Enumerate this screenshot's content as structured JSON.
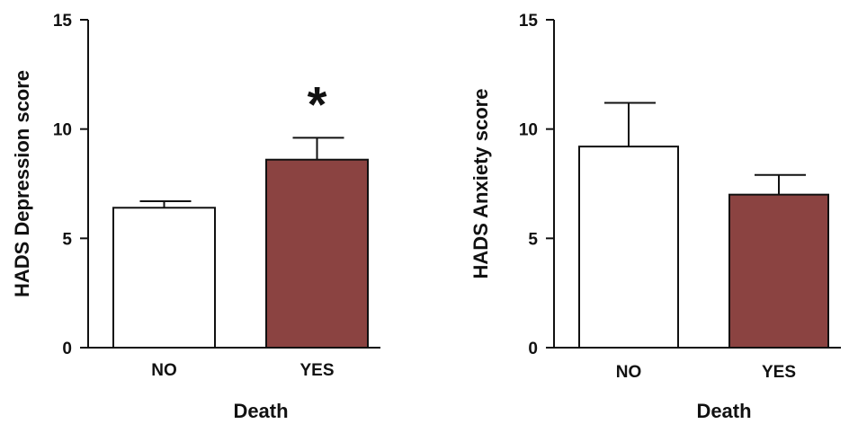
{
  "colors": {
    "no_fill": "#ffffff",
    "yes_fill": "#8b4341",
    "stroke": "#111111"
  },
  "chart_data": [
    {
      "type": "bar",
      "categories": [
        "NO",
        "YES"
      ],
      "values": [
        6.4,
        8.6
      ],
      "error": [
        0.3,
        1.0
      ],
      "xlabel": "Death",
      "ylabel": "HADS Depression score",
      "ylim": [
        0,
        15
      ],
      "yticks": [
        0,
        5,
        10,
        15
      ],
      "annotation": {
        "text": "*",
        "category": "YES"
      },
      "grid": false
    },
    {
      "type": "bar",
      "categories": [
        "NO",
        "YES"
      ],
      "values": [
        9.2,
        7.0
      ],
      "error": [
        2.0,
        0.9
      ],
      "xlabel": "Death",
      "ylabel": "HADS Anxiety  score",
      "ylim": [
        0,
        15
      ],
      "yticks": [
        0,
        5,
        10,
        15
      ],
      "grid": false
    }
  ]
}
